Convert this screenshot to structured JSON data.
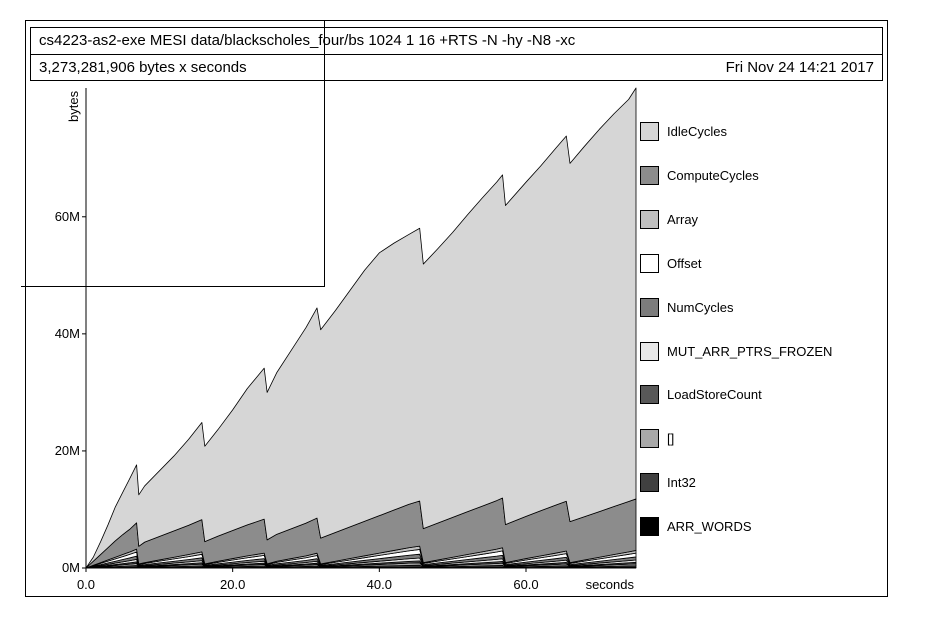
{
  "header": {
    "title": "cs4223-as2-exe MESI data/blackscholes_four/bs 1024 1 16 +RTS -N -hy -N8 -xc",
    "total": "3,273,281,906 bytes x seconds",
    "timestamp": "Fri Nov 24 14:21 2017"
  },
  "chart_data": {
    "type": "area",
    "stacked": true,
    "xlabel": "seconds",
    "ylabel": "bytes",
    "xlim": [
      0,
      75
    ],
    "ylim": [
      0,
      82000000
    ],
    "x_ticks": [
      {
        "value": 0,
        "label": "0.0"
      },
      {
        "value": 20,
        "label": "20.0"
      },
      {
        "value": 40,
        "label": "40.0"
      },
      {
        "value": 60,
        "label": "60.0"
      }
    ],
    "y_ticks": [
      {
        "value": 0,
        "label": "0M"
      },
      {
        "value": 20000000,
        "label": "20M"
      },
      {
        "value": 40000000,
        "label": "40M"
      },
      {
        "value": 60000000,
        "label": "60M"
      }
    ],
    "legend_position": "right",
    "x": [
      0,
      1,
      2,
      3,
      4,
      5,
      6,
      6.9,
      7.2,
      8,
      10,
      12,
      14,
      15.8,
      16.2,
      18,
      20,
      22,
      24.3,
      24.7,
      26,
      28,
      30,
      31.5,
      32,
      34,
      36,
      38,
      40,
      42,
      44,
      45.5,
      46,
      48,
      50,
      52,
      54,
      56,
      56.8,
      57.2,
      60,
      62,
      64,
      65.5,
      66,
      68,
      70,
      72,
      74,
      75
    ],
    "series": [
      {
        "name": "ARR_WORDS",
        "color": "#000000",
        "values": [
          0,
          20000,
          40000,
          60000,
          80000,
          100000,
          120000,
          140000,
          30000,
          40000,
          60000,
          80000,
          100000,
          120000,
          30000,
          50000,
          70000,
          90000,
          110000,
          30000,
          50000,
          70000,
          90000,
          110000,
          30000,
          50000,
          70000,
          90000,
          110000,
          130000,
          150000,
          160000,
          40000,
          60000,
          80000,
          100000,
          120000,
          140000,
          150000,
          40000,
          70000,
          90000,
          110000,
          130000,
          40000,
          60000,
          80000,
          100000,
          120000,
          130000
        ]
      },
      {
        "name": "Int32",
        "color": "#404040",
        "values": [
          0,
          40000,
          80000,
          120000,
          160000,
          200000,
          240000,
          280000,
          60000,
          80000,
          120000,
          160000,
          200000,
          240000,
          60000,
          100000,
          140000,
          180000,
          220000,
          60000,
          100000,
          140000,
          180000,
          220000,
          60000,
          100000,
          140000,
          180000,
          220000,
          260000,
          300000,
          320000,
          80000,
          120000,
          160000,
          200000,
          240000,
          280000,
          300000,
          80000,
          140000,
          180000,
          220000,
          260000,
          80000,
          120000,
          160000,
          200000,
          240000,
          260000
        ]
      },
      {
        "name": "[]",
        "color": "#a8a8a8",
        "values": [
          0,
          50000,
          100000,
          150000,
          200000,
          250000,
          300000,
          350000,
          80000,
          100000,
          150000,
          200000,
          250000,
          300000,
          80000,
          120000,
          170000,
          220000,
          280000,
          80000,
          120000,
          170000,
          220000,
          270000,
          80000,
          130000,
          180000,
          230000,
          280000,
          330000,
          380000,
          410000,
          100000,
          150000,
          200000,
          250000,
          300000,
          350000,
          380000,
          100000,
          170000,
          220000,
          270000,
          310000,
          100000,
          150000,
          200000,
          250000,
          300000,
          330000
        ]
      },
      {
        "name": "LoadStoreCount",
        "color": "#585858",
        "values": [
          0,
          40000,
          80000,
          120000,
          160000,
          200000,
          240000,
          280000,
          60000,
          80000,
          120000,
          160000,
          200000,
          240000,
          60000,
          100000,
          140000,
          180000,
          220000,
          60000,
          100000,
          140000,
          180000,
          220000,
          60000,
          100000,
          140000,
          180000,
          220000,
          260000,
          300000,
          330000,
          80000,
          120000,
          160000,
          200000,
          240000,
          280000,
          300000,
          80000,
          140000,
          180000,
          220000,
          260000,
          80000,
          120000,
          160000,
          200000,
          240000,
          260000
        ]
      },
      {
        "name": "MUT_ARR_PTRS_FROZEN",
        "color": "#e8e8e8",
        "values": [
          0,
          60000,
          120000,
          180000,
          240000,
          300000,
          360000,
          420000,
          90000,
          120000,
          180000,
          240000,
          300000,
          360000,
          90000,
          150000,
          210000,
          270000,
          330000,
          90000,
          150000,
          210000,
          270000,
          330000,
          90000,
          150000,
          210000,
          270000,
          330000,
          390000,
          450000,
          490000,
          120000,
          180000,
          240000,
          300000,
          360000,
          420000,
          450000,
          120000,
          210000,
          270000,
          330000,
          380000,
          120000,
          180000,
          240000,
          300000,
          360000,
          390000
        ]
      },
      {
        "name": "NumCycles",
        "color": "#7c7c7c",
        "values": [
          0,
          80000,
          160000,
          240000,
          320000,
          400000,
          480000,
          560000,
          120000,
          160000,
          240000,
          320000,
          400000,
          480000,
          120000,
          200000,
          280000,
          360000,
          440000,
          120000,
          200000,
          280000,
          360000,
          440000,
          120000,
          200000,
          280000,
          360000,
          440000,
          520000,
          600000,
          650000,
          160000,
          240000,
          320000,
          400000,
          480000,
          560000,
          600000,
          160000,
          280000,
          360000,
          440000,
          500000,
          160000,
          240000,
          320000,
          400000,
          480000,
          520000
        ]
      },
      {
        "name": "Offset",
        "color": "#ffffff",
        "values": [
          0,
          100000,
          200000,
          300000,
          400000,
          500000,
          600000,
          700000,
          150000,
          200000,
          300000,
          400000,
          500000,
          600000,
          150000,
          250000,
          350000,
          450000,
          550000,
          150000,
          250000,
          350000,
          450000,
          550000,
          150000,
          250000,
          350000,
          450000,
          550000,
          650000,
          750000,
          810000,
          200000,
          300000,
          400000,
          500000,
          600000,
          700000,
          750000,
          200000,
          350000,
          450000,
          550000,
          620000,
          200000,
          300000,
          400000,
          500000,
          600000,
          650000
        ]
      },
      {
        "name": "Array",
        "color": "#c0c0c0",
        "values": [
          0,
          70000,
          140000,
          210000,
          280000,
          350000,
          420000,
          490000,
          110000,
          140000,
          210000,
          280000,
          350000,
          420000,
          110000,
          180000,
          250000,
          320000,
          390000,
          110000,
          180000,
          250000,
          320000,
          390000,
          110000,
          180000,
          250000,
          320000,
          390000,
          460000,
          530000,
          570000,
          140000,
          210000,
          280000,
          350000,
          420000,
          490000,
          530000,
          140000,
          250000,
          320000,
          390000,
          440000,
          140000,
          210000,
          280000,
          350000,
          420000,
          460000
        ]
      },
      {
        "name": "ComputeCycles",
        "color": "#8c8c8c",
        "values": [
          0,
          700000,
          1400000,
          2100000,
          2800000,
          3400000,
          3900000,
          4500000,
          3000000,
          3500000,
          4000000,
          4500000,
          5000000,
          5500000,
          3800000,
          4300000,
          4800000,
          5300000,
          5800000,
          4100000,
          4600000,
          5100000,
          5600000,
          6000000,
          4400000,
          4900000,
          5400000,
          5900000,
          6400000,
          6900000,
          7400000,
          7700000,
          5800000,
          6300000,
          6800000,
          7300000,
          7800000,
          8300000,
          8500000,
          6500000,
          7200000,
          7700000,
          8200000,
          8500000,
          7000000,
          7400000,
          7800000,
          8200000,
          8600000,
          8800000
        ]
      },
      {
        "name": "IdleCycles",
        "color": "#d6d6d6",
        "values": [
          0,
          700000,
          2200000,
          3900000,
          5800000,
          7200000,
          8700000,
          9900000,
          8800000,
          9600000,
          11200000,
          12800000,
          14700000,
          16600000,
          16300000,
          18200000,
          20600000,
          23300000,
          25800000,
          25200000,
          27600000,
          30500000,
          33400000,
          35900000,
          35600000,
          37900000,
          40400000,
          42900000,
          44900000,
          45600000,
          46100000,
          46600000,
          45200000,
          46900000,
          48700000,
          50700000,
          52600000,
          54400000,
          55200000,
          54500000,
          57100000,
          58900000,
          60900000,
          62400000,
          61200000,
          63300000,
          65300000,
          67100000,
          68700000,
          70200000
        ]
      }
    ]
  }
}
